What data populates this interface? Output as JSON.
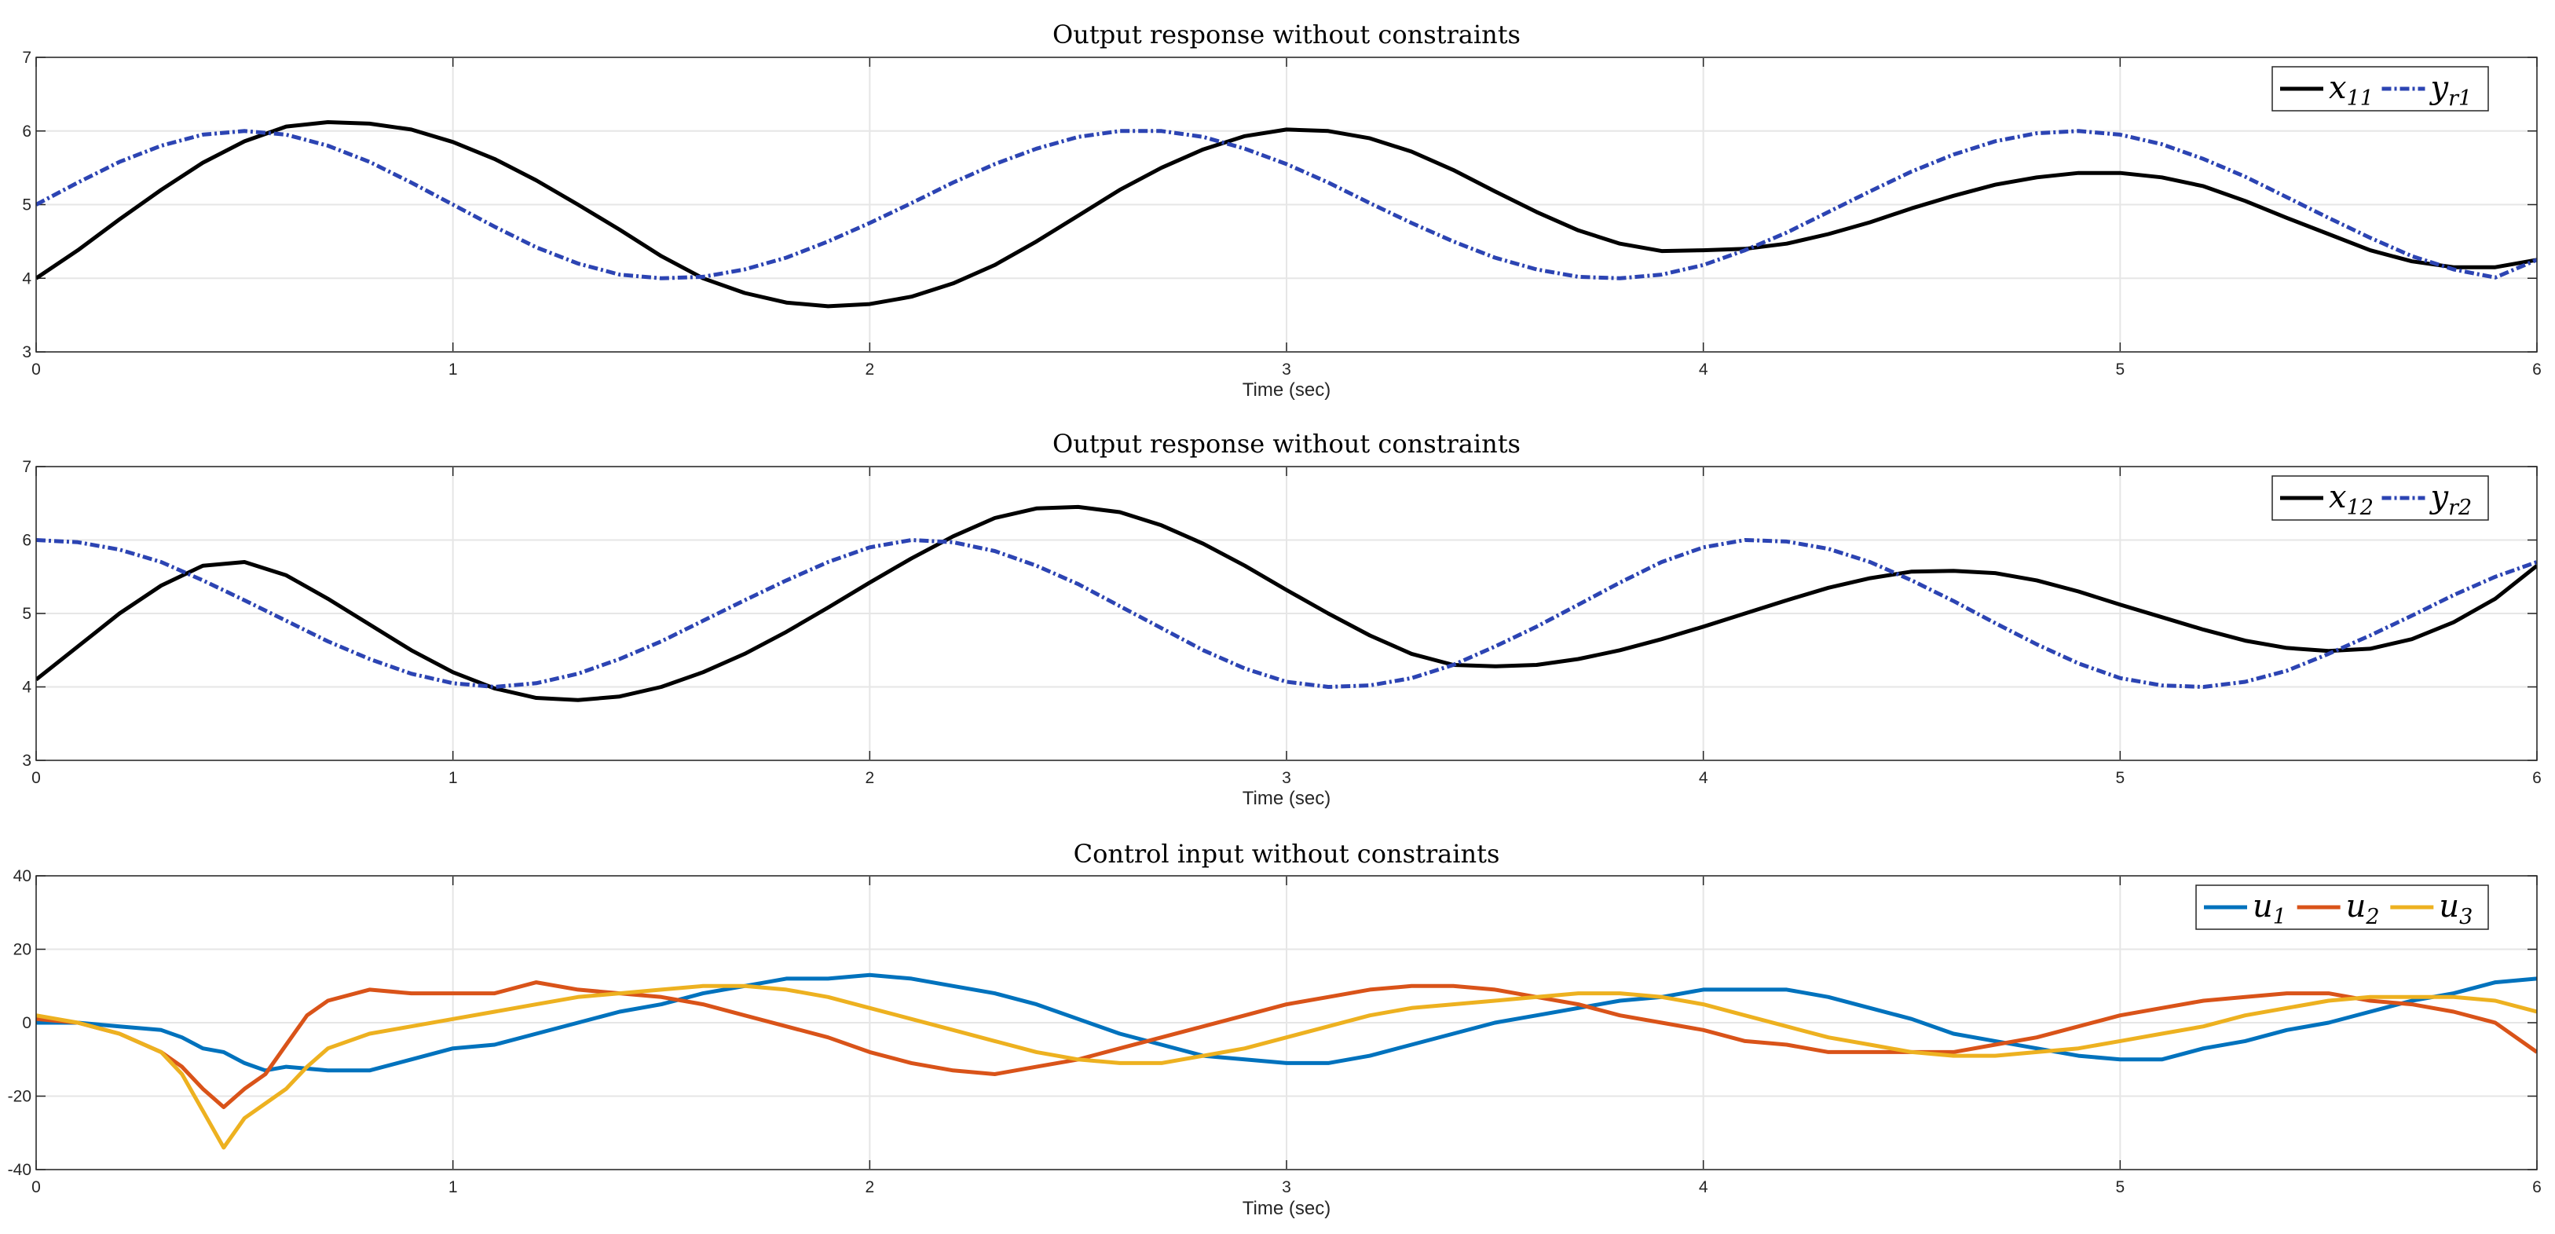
{
  "chart_data": [
    {
      "type": "line",
      "title": "Output response without constraints",
      "xlabel": "Time (sec)",
      "ylabel": "",
      "xlim": [
        0,
        6
      ],
      "ylim": [
        3,
        7
      ],
      "xticks": [
        "0",
        "1",
        "2",
        "3",
        "4",
        "5",
        "6"
      ],
      "yticks": [
        "3",
        "4",
        "5",
        "6",
        "7"
      ],
      "grid": true,
      "legend_position": "top-right",
      "series": [
        {
          "name": "x11",
          "legend_base": "x",
          "legend_sub": "11",
          "color": "#000000",
          "style": "solid",
          "x": [
            0,
            0.1,
            0.2,
            0.3,
            0.4,
            0.5,
            0.6,
            0.7,
            0.8,
            0.9,
            1.0,
            1.1,
            1.2,
            1.3,
            1.4,
            1.5,
            1.6,
            1.7,
            1.8,
            1.9,
            2.0,
            2.1,
            2.2,
            2.3,
            2.4,
            2.5,
            2.6,
            2.7,
            2.8,
            2.9,
            3.0,
            3.1,
            3.2,
            3.3,
            3.4,
            3.5,
            3.6,
            3.7,
            3.8,
            3.9,
            4.0,
            4.1,
            4.2,
            4.3,
            4.4,
            4.5,
            4.6,
            4.7,
            4.8,
            4.9,
            5.0,
            5.1,
            5.2,
            5.3,
            5.4,
            5.5,
            5.6,
            5.7,
            5.8,
            5.9,
            6.0
          ],
          "y": [
            4.0,
            4.38,
            4.8,
            5.2,
            5.57,
            5.86,
            6.06,
            6.12,
            6.1,
            6.02,
            5.85,
            5.62,
            5.33,
            5.0,
            4.66,
            4.3,
            4.0,
            3.8,
            3.67,
            3.62,
            3.65,
            3.75,
            3.93,
            4.18,
            4.5,
            4.85,
            5.2,
            5.5,
            5.75,
            5.93,
            6.02,
            6.0,
            5.9,
            5.72,
            5.47,
            5.18,
            4.9,
            4.65,
            4.47,
            4.37,
            4.38,
            4.4,
            4.47,
            4.6,
            4.76,
            4.95,
            5.12,
            5.27,
            5.37,
            5.43,
            5.43,
            5.37,
            5.25,
            5.05,
            4.82,
            4.6,
            4.38,
            4.23,
            4.15,
            4.15,
            4.25
          ]
        },
        {
          "name": "yr1",
          "legend_base": "y",
          "legend_sub": "r1",
          "color": "#2c44b3",
          "style": "dashed",
          "x": [
            0,
            0.1,
            0.2,
            0.3,
            0.4,
            0.5,
            0.6,
            0.7,
            0.8,
            0.9,
            1.0,
            1.1,
            1.2,
            1.3,
            1.4,
            1.5,
            1.6,
            1.7,
            1.8,
            1.9,
            2.0,
            2.1,
            2.2,
            2.3,
            2.4,
            2.5,
            2.6,
            2.7,
            2.8,
            2.9,
            3.0,
            3.1,
            3.2,
            3.3,
            3.4,
            3.5,
            3.6,
            3.7,
            3.8,
            3.9,
            4.0,
            4.1,
            4.2,
            4.3,
            4.4,
            4.5,
            4.6,
            4.7,
            4.8,
            4.9,
            5.0,
            5.1,
            5.2,
            5.3,
            5.4,
            5.5,
            5.6,
            5.7,
            5.8,
            5.9,
            6.0
          ],
          "y": [
            5.0,
            5.3,
            5.58,
            5.8,
            5.95,
            6.0,
            5.95,
            5.8,
            5.58,
            5.3,
            5.0,
            4.7,
            4.42,
            4.2,
            4.05,
            4.0,
            4.02,
            4.12,
            4.28,
            4.5,
            4.75,
            5.02,
            5.3,
            5.55,
            5.76,
            5.92,
            6.0,
            6.0,
            5.92,
            5.76,
            5.55,
            5.3,
            5.02,
            4.75,
            4.5,
            4.28,
            4.12,
            4.02,
            4.0,
            4.05,
            4.18,
            4.38,
            4.62,
            4.9,
            5.18,
            5.45,
            5.68,
            5.86,
            5.97,
            6.0,
            5.95,
            5.82,
            5.62,
            5.38,
            5.1,
            4.82,
            4.55,
            4.3,
            4.12,
            4.01,
            4.25
          ]
        }
      ]
    },
    {
      "type": "line",
      "title": "Output response without constraints",
      "xlabel": "Time (sec)",
      "ylabel": "",
      "xlim": [
        0,
        6
      ],
      "ylim": [
        3,
        7
      ],
      "xticks": [
        "0",
        "1",
        "2",
        "3",
        "4",
        "5",
        "6"
      ],
      "yticks": [
        "3",
        "4",
        "5",
        "6",
        "7"
      ],
      "grid": true,
      "legend_position": "top-right",
      "series": [
        {
          "name": "x12",
          "legend_base": "x",
          "legend_sub": "12",
          "color": "#000000",
          "style": "solid",
          "x": [
            0,
            0.1,
            0.2,
            0.3,
            0.4,
            0.5,
            0.6,
            0.7,
            0.8,
            0.9,
            1.0,
            1.1,
            1.2,
            1.3,
            1.4,
            1.5,
            1.6,
            1.7,
            1.8,
            1.9,
            2.0,
            2.1,
            2.2,
            2.3,
            2.4,
            2.5,
            2.6,
            2.7,
            2.8,
            2.9,
            3.0,
            3.1,
            3.2,
            3.3,
            3.4,
            3.5,
            3.6,
            3.7,
            3.8,
            3.9,
            4.0,
            4.1,
            4.2,
            4.3,
            4.4,
            4.5,
            4.6,
            4.7,
            4.8,
            4.9,
            5.0,
            5.1,
            5.2,
            5.3,
            5.4,
            5.5,
            5.6,
            5.7,
            5.8,
            5.9,
            6.0
          ],
          "y": [
            4.1,
            4.55,
            5.0,
            5.38,
            5.65,
            5.7,
            5.52,
            5.2,
            4.85,
            4.5,
            4.2,
            3.98,
            3.85,
            3.82,
            3.87,
            4.0,
            4.2,
            4.45,
            4.75,
            5.08,
            5.42,
            5.75,
            6.05,
            6.3,
            6.43,
            6.45,
            6.38,
            6.2,
            5.95,
            5.65,
            5.32,
            5.0,
            4.7,
            4.45,
            4.3,
            4.28,
            4.3,
            4.38,
            4.5,
            4.65,
            4.82,
            5.0,
            5.18,
            5.35,
            5.48,
            5.57,
            5.58,
            5.55,
            5.45,
            5.3,
            5.12,
            4.95,
            4.78,
            4.63,
            4.53,
            4.49,
            4.52,
            4.65,
            4.88,
            5.2,
            5.65
          ]
        },
        {
          "name": "yr2",
          "legend_base": "y",
          "legend_sub": "r2",
          "color": "#2c44b3",
          "style": "dashed",
          "x": [
            0,
            0.1,
            0.2,
            0.3,
            0.4,
            0.5,
            0.6,
            0.7,
            0.8,
            0.9,
            1.0,
            1.1,
            1.2,
            1.3,
            1.4,
            1.5,
            1.6,
            1.7,
            1.8,
            1.9,
            2.0,
            2.1,
            2.2,
            2.3,
            2.4,
            2.5,
            2.6,
            2.7,
            2.8,
            2.9,
            3.0,
            3.1,
            3.2,
            3.3,
            3.4,
            3.5,
            3.6,
            3.7,
            3.8,
            3.9,
            4.0,
            4.1,
            4.2,
            4.3,
            4.4,
            4.5,
            4.6,
            4.7,
            4.8,
            4.9,
            5.0,
            5.1,
            5.2,
            5.3,
            5.4,
            5.5,
            5.6,
            5.7,
            5.8,
            5.9,
            6.0
          ],
          "y": [
            6.0,
            5.97,
            5.87,
            5.7,
            5.45,
            5.18,
            4.9,
            4.62,
            4.38,
            4.18,
            4.05,
            4.0,
            4.05,
            4.18,
            4.38,
            4.62,
            4.9,
            5.18,
            5.45,
            5.7,
            5.9,
            6.0,
            5.97,
            5.85,
            5.65,
            5.4,
            5.1,
            4.8,
            4.5,
            4.25,
            4.07,
            4.0,
            4.02,
            4.12,
            4.3,
            4.55,
            4.82,
            5.12,
            5.42,
            5.7,
            5.9,
            6.0,
            5.98,
            5.88,
            5.7,
            5.45,
            5.17,
            4.87,
            4.58,
            4.32,
            4.12,
            4.02,
            4.0,
            4.07,
            4.22,
            4.45,
            4.7,
            4.97,
            5.25,
            5.5,
            5.7
          ]
        }
      ]
    },
    {
      "type": "line",
      "title": "Control input without constraints",
      "xlabel": "Time (sec)",
      "ylabel": "",
      "xlim": [
        0,
        6
      ],
      "ylim": [
        -40,
        40
      ],
      "xticks": [
        "0",
        "1",
        "2",
        "3",
        "4",
        "5",
        "6"
      ],
      "yticks": [
        "-40",
        "-20",
        "0",
        "20",
        "40"
      ],
      "grid": true,
      "legend_position": "top-right",
      "series": [
        {
          "name": "u1",
          "legend_base": "u",
          "legend_sub": "1",
          "color": "#0072bd",
          "style": "solid",
          "x": [
            0,
            0.1,
            0.2,
            0.3,
            0.35,
            0.4,
            0.45,
            0.5,
            0.55,
            0.6,
            0.7,
            0.8,
            0.9,
            1.0,
            1.1,
            1.2,
            1.3,
            1.4,
            1.5,
            1.6,
            1.7,
            1.8,
            1.9,
            2.0,
            2.1,
            2.2,
            2.3,
            2.4,
            2.5,
            2.6,
            2.7,
            2.8,
            2.9,
            3.0,
            3.1,
            3.2,
            3.3,
            3.4,
            3.5,
            3.6,
            3.7,
            3.8,
            3.9,
            4.0,
            4.1,
            4.2,
            4.3,
            4.4,
            4.5,
            4.6,
            4.7,
            4.8,
            4.9,
            5.0,
            5.1,
            5.2,
            5.3,
            5.4,
            5.5,
            5.6,
            5.7,
            5.8,
            5.9,
            6.0
          ],
          "y": [
            0,
            0,
            -1,
            -2,
            -4,
            -7,
            -8,
            -11,
            -13,
            -12,
            -13,
            -13,
            -10,
            -7,
            -6,
            -3,
            0,
            3,
            5,
            8,
            10,
            12,
            12,
            13,
            12,
            10,
            8,
            5,
            1,
            -3,
            -6,
            -9,
            -10,
            -11,
            -11,
            -9,
            -6,
            -3,
            0,
            2,
            4,
            6,
            7,
            9,
            9,
            9,
            7,
            4,
            1,
            -3,
            -5,
            -7,
            -9,
            -10,
            -10,
            -7,
            -5,
            -2,
            0,
            3,
            6,
            8,
            11,
            12
          ]
        },
        {
          "name": "u2",
          "legend_base": "u",
          "legend_sub": "2",
          "color": "#d95319",
          "style": "solid",
          "x": [
            0,
            0.1,
            0.2,
            0.3,
            0.35,
            0.4,
            0.45,
            0.5,
            0.55,
            0.6,
            0.65,
            0.7,
            0.8,
            0.9,
            1.0,
            1.1,
            1.2,
            1.3,
            1.4,
            1.5,
            1.6,
            1.7,
            1.8,
            1.9,
            2.0,
            2.1,
            2.2,
            2.3,
            2.4,
            2.5,
            2.6,
            2.7,
            2.8,
            2.9,
            3.0,
            3.1,
            3.2,
            3.3,
            3.4,
            3.5,
            3.6,
            3.7,
            3.8,
            3.9,
            4.0,
            4.1,
            4.2,
            4.3,
            4.4,
            4.5,
            4.6,
            4.7,
            4.8,
            4.9,
            5.0,
            5.1,
            5.2,
            5.3,
            5.4,
            5.5,
            5.6,
            5.7,
            5.8,
            5.9,
            6.0
          ],
          "y": [
            1,
            0,
            -3,
            -8,
            -12,
            -18,
            -23,
            -18,
            -14,
            -6,
            2,
            6,
            9,
            8,
            8,
            8,
            11,
            9,
            8,
            7,
            5,
            2,
            -1,
            -4,
            -8,
            -11,
            -13,
            -14,
            -12,
            -10,
            -7,
            -4,
            -1,
            2,
            5,
            7,
            9,
            10,
            10,
            9,
            7,
            5,
            2,
            0,
            -2,
            -5,
            -6,
            -8,
            -8,
            -8,
            -8,
            -6,
            -4,
            -1,
            2,
            4,
            6,
            7,
            8,
            8,
            6,
            5,
            3,
            0,
            -8
          ]
        },
        {
          "name": "u3",
          "legend_base": "u",
          "legend_sub": "3",
          "color": "#edb120",
          "style": "solid",
          "x": [
            0,
            0.1,
            0.2,
            0.3,
            0.35,
            0.4,
            0.45,
            0.5,
            0.55,
            0.6,
            0.65,
            0.7,
            0.8,
            0.9,
            1.0,
            1.1,
            1.2,
            1.3,
            1.4,
            1.5,
            1.6,
            1.7,
            1.8,
            1.9,
            2.0,
            2.1,
            2.2,
            2.3,
            2.4,
            2.5,
            2.6,
            2.7,
            2.8,
            2.9,
            3.0,
            3.1,
            3.2,
            3.3,
            3.4,
            3.5,
            3.6,
            3.7,
            3.8,
            3.9,
            4.0,
            4.1,
            4.2,
            4.3,
            4.4,
            4.5,
            4.6,
            4.7,
            4.8,
            4.9,
            5.0,
            5.1,
            5.2,
            5.3,
            5.4,
            5.5,
            5.6,
            5.7,
            5.8,
            5.9,
            6.0
          ],
          "y": [
            2,
            0,
            -3,
            -8,
            -14,
            -24,
            -34,
            -26,
            -22,
            -18,
            -12,
            -7,
            -3,
            -1,
            1,
            3,
            5,
            7,
            8,
            9,
            10,
            10,
            9,
            7,
            4,
            1,
            -2,
            -5,
            -8,
            -10,
            -11,
            -11,
            -9,
            -7,
            -4,
            -1,
            2,
            4,
            5,
            6,
            7,
            8,
            8,
            7,
            5,
            2,
            -1,
            -4,
            -6,
            -8,
            -9,
            -9,
            -8,
            -7,
            -5,
            -3,
            -1,
            2,
            4,
            6,
            7,
            7,
            7,
            6,
            3
          ]
        }
      ]
    }
  ]
}
